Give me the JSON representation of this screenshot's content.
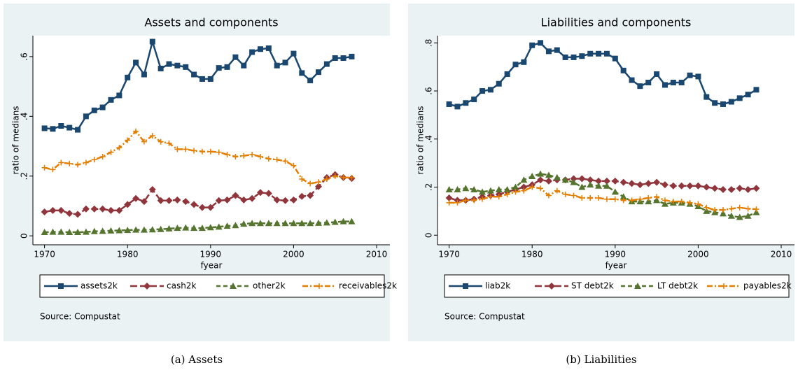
{
  "chart_data": [
    {
      "type": "line",
      "title": "Assets and components",
      "xlabel": "fyear",
      "ylabel": "ratio of medians",
      "note": "Source: Compustat",
      "caption": "(a) Assets",
      "x": [
        1970,
        1971,
        1972,
        1973,
        1974,
        1975,
        1976,
        1977,
        1978,
        1979,
        1980,
        1981,
        1982,
        1983,
        1984,
        1985,
        1986,
        1987,
        1988,
        1989,
        1990,
        1991,
        1992,
        1993,
        1994,
        1995,
        1996,
        1997,
        1998,
        1999,
        2000,
        2001,
        2002,
        2003,
        2004,
        2005,
        2006,
        2007
      ],
      "xlim": [
        1968.6,
        2011.6
      ],
      "xticks": [
        1970,
        1980,
        1990,
        2000,
        2010
      ],
      "ylim": [
        -0.03,
        0.67
      ],
      "yticks": [
        0,
        {
          "value": 0.2,
          "label": ".2"
        },
        {
          "value": 0.4,
          "label": ".4"
        },
        {
          "value": 0.6,
          "label": ".6"
        }
      ],
      "grid": false,
      "legend": "bottom",
      "series": [
        {
          "name": "assets2k",
          "color": "#1a476f",
          "marker": "square",
          "dash": "solid",
          "values": [
            0.36,
            0.358,
            0.368,
            0.362,
            0.355,
            0.4,
            0.42,
            0.43,
            0.455,
            0.47,
            0.53,
            0.58,
            0.54,
            0.65,
            0.56,
            0.575,
            0.57,
            0.565,
            0.54,
            0.525,
            0.525,
            0.562,
            0.565,
            0.598,
            0.57,
            0.615,
            0.625,
            0.628,
            0.57,
            0.58,
            0.61,
            0.545,
            0.52,
            0.548,
            0.575,
            0.595,
            0.595,
            0.6
          ]
        },
        {
          "name": "cash2k",
          "color": "#90353b",
          "marker": "diamond",
          "dash": "longdash",
          "values": [
            0.08,
            0.085,
            0.085,
            0.075,
            0.072,
            0.09,
            0.09,
            0.09,
            0.085,
            0.085,
            0.105,
            0.125,
            0.115,
            0.155,
            0.118,
            0.118,
            0.12,
            0.115,
            0.105,
            0.095,
            0.095,
            0.118,
            0.12,
            0.135,
            0.12,
            0.125,
            0.145,
            0.142,
            0.12,
            0.118,
            0.12,
            0.132,
            0.135,
            0.165,
            0.195,
            0.205,
            0.195,
            0.192
          ]
        },
        {
          "name": "other2k",
          "color": "#55752f",
          "marker": "triangle",
          "dash": "dash",
          "values": [
            0.012,
            0.013,
            0.013,
            0.012,
            0.012,
            0.013,
            0.015,
            0.016,
            0.017,
            0.018,
            0.019,
            0.02,
            0.02,
            0.021,
            0.022,
            0.024,
            0.026,
            0.027,
            0.026,
            0.026,
            0.028,
            0.03,
            0.033,
            0.035,
            0.04,
            0.042,
            0.042,
            0.042,
            0.042,
            0.042,
            0.042,
            0.042,
            0.042,
            0.043,
            0.044,
            0.046,
            0.048,
            0.048
          ]
        },
        {
          "name": "receivables2k",
          "color": "#e37e00",
          "marker": "plus",
          "dash": "dashdot",
          "values": [
            0.228,
            0.222,
            0.245,
            0.242,
            0.238,
            0.245,
            0.255,
            0.265,
            0.28,
            0.295,
            0.32,
            0.35,
            0.315,
            0.335,
            0.315,
            0.31,
            0.29,
            0.29,
            0.285,
            0.282,
            0.282,
            0.28,
            0.272,
            0.265,
            0.268,
            0.272,
            0.265,
            0.258,
            0.255,
            0.25,
            0.235,
            0.19,
            0.175,
            0.18,
            0.19,
            0.2,
            0.195,
            0.195
          ]
        }
      ]
    },
    {
      "type": "line",
      "title": "Liabilities and components",
      "xlabel": "fyear",
      "ylabel": "ratio of medians",
      "note": "Source: Compustat",
      "caption": "(b) Liabilities",
      "x": [
        1970,
        1971,
        1972,
        1973,
        1974,
        1975,
        1976,
        1977,
        1978,
        1979,
        1980,
        1981,
        1982,
        1983,
        1984,
        1985,
        1986,
        1987,
        1988,
        1989,
        1990,
        1991,
        1992,
        1993,
        1994,
        1995,
        1996,
        1997,
        1998,
        1999,
        2000,
        2001,
        2002,
        2003,
        2004,
        2005,
        2006,
        2007
      ],
      "xlim": [
        1968.6,
        2011.6
      ],
      "xticks": [
        1970,
        1980,
        1990,
        2000,
        2010
      ],
      "ylim": [
        -0.04,
        0.83
      ],
      "yticks": [
        0,
        {
          "value": 0.2,
          "label": ".2"
        },
        {
          "value": 0.4,
          "label": ".4"
        },
        {
          "value": 0.6,
          "label": ".6"
        },
        {
          "value": 0.8,
          "label": ".8"
        }
      ],
      "grid": false,
      "legend": "bottom",
      "series": [
        {
          "name": "liab2k",
          "color": "#1a476f",
          "marker": "square",
          "dash": "solid",
          "values": [
            0.545,
            0.535,
            0.55,
            0.565,
            0.6,
            0.605,
            0.63,
            0.67,
            0.71,
            0.72,
            0.79,
            0.8,
            0.765,
            0.77,
            0.74,
            0.74,
            0.745,
            0.755,
            0.755,
            0.755,
            0.735,
            0.685,
            0.645,
            0.62,
            0.635,
            0.67,
            0.625,
            0.635,
            0.635,
            0.665,
            0.66,
            0.575,
            0.55,
            0.545,
            0.555,
            0.57,
            0.585,
            0.605
          ]
        },
        {
          "name": "ST debt2k",
          "color": "#90353b",
          "marker": "diamond",
          "dash": "longdash",
          "values": [
            0.155,
            0.145,
            0.145,
            0.15,
            0.16,
            0.165,
            0.17,
            0.18,
            0.19,
            0.2,
            0.21,
            0.23,
            0.225,
            0.23,
            0.23,
            0.235,
            0.235,
            0.23,
            0.225,
            0.225,
            0.225,
            0.22,
            0.215,
            0.21,
            0.215,
            0.22,
            0.21,
            0.205,
            0.205,
            0.205,
            0.205,
            0.2,
            0.195,
            0.19,
            0.19,
            0.195,
            0.19,
            0.195
          ]
        },
        {
          "name": "LT debt2k",
          "color": "#55752f",
          "marker": "triangle",
          "dash": "dash",
          "values": [
            0.19,
            0.19,
            0.195,
            0.19,
            0.18,
            0.185,
            0.19,
            0.19,
            0.2,
            0.23,
            0.245,
            0.255,
            0.25,
            0.24,
            0.23,
            0.22,
            0.2,
            0.21,
            0.205,
            0.205,
            0.18,
            0.16,
            0.14,
            0.14,
            0.14,
            0.145,
            0.13,
            0.135,
            0.135,
            0.13,
            0.12,
            0.1,
            0.095,
            0.09,
            0.08,
            0.075,
            0.08,
            0.095
          ]
        },
        {
          "name": "payables2k",
          "color": "#e37e00",
          "marker": "plus",
          "dash": "dashdot",
          "values": [
            0.135,
            0.135,
            0.145,
            0.145,
            0.15,
            0.16,
            0.16,
            0.17,
            0.18,
            0.185,
            0.2,
            0.195,
            0.165,
            0.185,
            0.17,
            0.165,
            0.155,
            0.155,
            0.155,
            0.15,
            0.15,
            0.145,
            0.145,
            0.15,
            0.155,
            0.16,
            0.145,
            0.14,
            0.14,
            0.135,
            0.13,
            0.115,
            0.105,
            0.105,
            0.11,
            0.115,
            0.11,
            0.108
          ]
        }
      ]
    }
  ]
}
